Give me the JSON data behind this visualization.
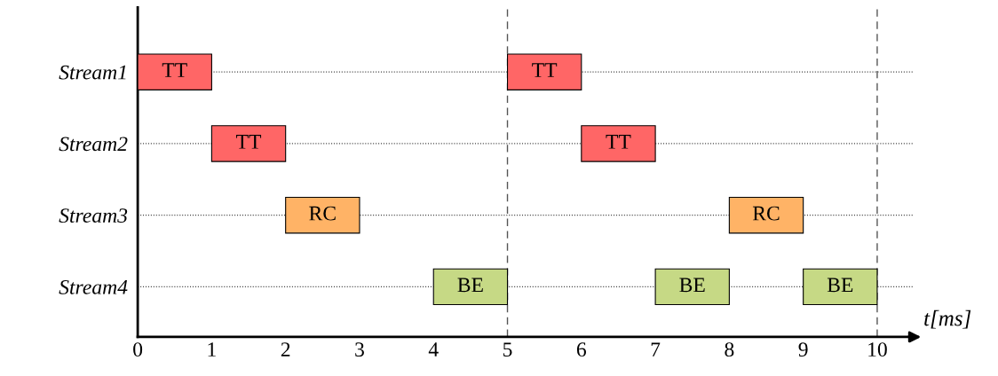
{
  "chart_data": {
    "type": "bar",
    "orientation": "horizontal",
    "xlabel": "t[ms]",
    "categories": [
      "Stream1",
      "Stream2",
      "Stream3",
      "Stream4"
    ],
    "series": [
      {
        "values": [
          1,
          1,
          1,
          1
        ],
        "base": [
          0,
          1,
          2,
          4
        ],
        "colors": [
          "#ff6666",
          "#ff6666",
          "#ffb366",
          "#c6d985"
        ],
        "value_labels": [
          "TT",
          "TT",
          "RC",
          "BE"
        ]
      },
      {
        "values": [
          1,
          1,
          1,
          1
        ],
        "base": [
          5,
          6,
          8,
          7
        ],
        "colors": [
          "#ff6666",
          "#ff6666",
          "#ffb366",
          "#c6d985"
        ],
        "value_labels": [
          "TT",
          "TT",
          "RC",
          "BE"
        ]
      },
      {
        "values": [
          null,
          null,
          null,
          1
        ],
        "base": [
          null,
          null,
          null,
          9
        ],
        "colors": [
          null,
          null,
          null,
          "#c6d985"
        ],
        "value_labels": [
          null,
          null,
          null,
          "BE"
        ]
      }
    ],
    "xlim": [
      0,
      10.5
    ],
    "xticks": [
      0,
      1,
      2,
      3,
      4,
      5,
      6,
      7,
      8,
      9,
      10
    ],
    "ref_lines": [
      {
        "axis": "x",
        "value": 5,
        "line_style": "dashed",
        "color": "#555555"
      },
      {
        "axis": "x",
        "value": 10,
        "line_style": "dashed",
        "color": "#555555"
      }
    ],
    "grid": "y",
    "tick_labels": "xy"
  }
}
